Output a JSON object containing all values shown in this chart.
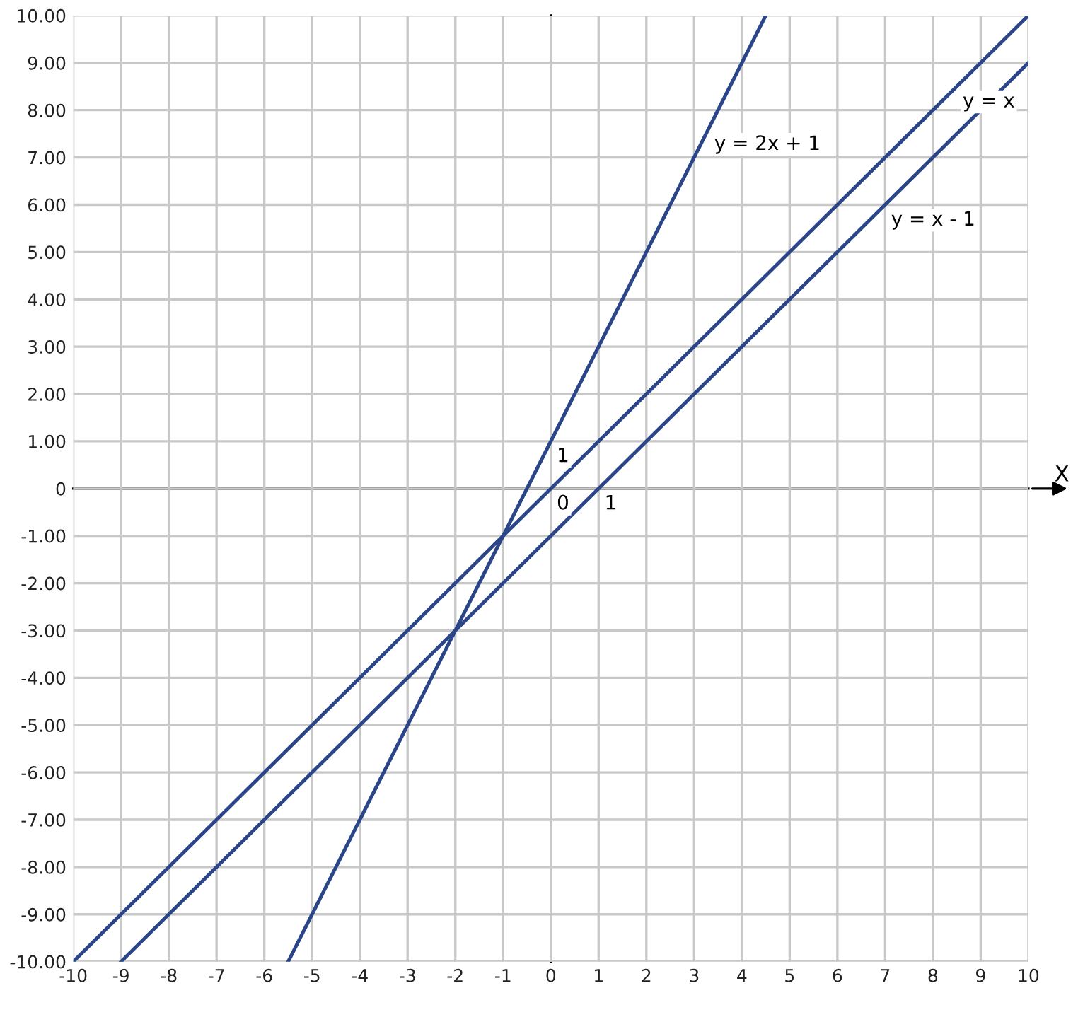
{
  "chart_data": {
    "type": "line",
    "xlabel": "X",
    "series": [
      {
        "color": "#2b4589",
        "x": [
          -5.5,
          4.5
        ],
        "values": [
          -10,
          10
        ]
      },
      {
        "color": "#2b4589",
        "x": [
          -10,
          10
        ],
        "values": [
          -10,
          10
        ]
      },
      {
        "color": "#2b4589",
        "x": [
          -9,
          10
        ],
        "values": [
          -10,
          9
        ]
      }
    ],
    "xlim": [
      -10,
      10
    ],
    "ylim": [
      -10,
      10
    ],
    "xticks": [
      -10,
      -9,
      -8,
      -7,
      -6,
      -5,
      -4,
      -3,
      -2,
      -1,
      0,
      1,
      2,
      3,
      4,
      5,
      6,
      7,
      8,
      9,
      10
    ],
    "yticks": [
      {
        "value": -10,
        "label": "-10.00"
      },
      {
        "value": -9,
        "label": "-9.00"
      },
      {
        "value": -8,
        "label": "-8.00"
      },
      {
        "value": -7,
        "label": "-7.00"
      },
      {
        "value": -6,
        "label": "-6.00"
      },
      {
        "value": -5,
        "label": "-5.00"
      },
      {
        "value": -4,
        "label": "-4.00"
      },
      {
        "value": -3,
        "label": "-3.00"
      },
      {
        "value": -2,
        "label": "-2.00"
      },
      {
        "value": -1,
        "label": "-1.00"
      },
      0,
      {
        "value": 1,
        "label": "1.00"
      },
      {
        "value": 2,
        "label": "2.00"
      },
      {
        "value": 3,
        "label": "3.00"
      },
      {
        "value": 4,
        "label": "4.00"
      },
      {
        "value": 5,
        "label": "5.00"
      },
      {
        "value": 6,
        "label": "6.00"
      },
      {
        "value": 7,
        "label": "7.00"
      },
      {
        "value": 8,
        "label": "8.00"
      },
      {
        "value": 9,
        "label": "9.00"
      },
      {
        "value": 10,
        "label": "10.00"
      }
    ],
    "grid": true,
    "marker": "none",
    "line_style": "solid",
    "annotations": [
      {
        "text": "y = 2x + 1",
        "x": 3.3,
        "y": 7.6
      },
      {
        "text": "y = x",
        "x": 8.5,
        "y": 8.5
      },
      {
        "text": "y = x - 1",
        "x": 7,
        "y": 6
      },
      {
        "text": "1",
        "x": 0,
        "y": 1
      },
      {
        "text": "0",
        "x": 0,
        "y": 0
      },
      {
        "text": "1",
        "x": 1,
        "y": 0
      }
    ]
  }
}
